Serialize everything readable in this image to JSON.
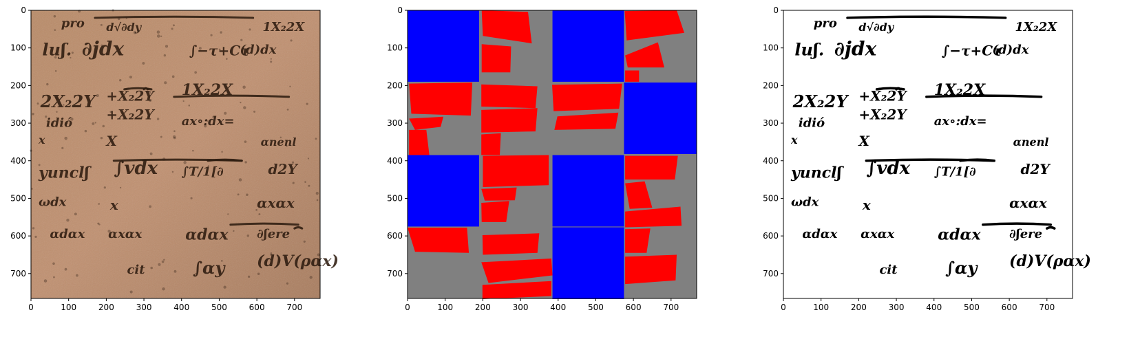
{
  "panels": [
    {
      "name": "manuscript-photo",
      "ticks": {
        "x": [
          "0",
          "100",
          "200",
          "300",
          "400",
          "500",
          "600",
          "700"
        ],
        "y": [
          "0",
          "100",
          "200",
          "300",
          "400",
          "500",
          "600",
          "700"
        ]
      },
      "background": "#b48867"
    },
    {
      "name": "segmentation-mask",
      "ticks": {
        "x": [
          "0",
          "100",
          "200",
          "300",
          "400",
          "500",
          "600",
          "700"
        ],
        "y": [
          "0",
          "100",
          "200",
          "300",
          "400",
          "500",
          "600",
          "700"
        ]
      },
      "colors": {
        "background": "#808080",
        "blue": "#0000ff",
        "red": "#ff0000"
      }
    },
    {
      "name": "binarized-text",
      "ticks": {
        "x": [
          "0",
          "100",
          "200",
          "300",
          "400",
          "500",
          "600",
          "700"
        ],
        "y": [
          "0",
          "100",
          "200",
          "300",
          "400",
          "500",
          "600",
          "700"
        ]
      },
      "background": "#ffffff"
    }
  ],
  "handwriting": {
    "words": [
      "pro",
      "d√∂dy",
      "1X₂2X",
      "luʃ.",
      "∂jdx",
      "∫−τ+Cτ",
      "(d)dx",
      "2X₂2Y",
      "+X₂2Y",
      "1X₂2X",
      "+X₂2Y",
      "idió",
      "ax∘:dx=",
      "X",
      "x",
      "αnenl",
      "yunclʃ",
      "∫vdx",
      "∫T/1[∂",
      "d2Y",
      "ωdx",
      "x",
      "αxαx",
      "αdαx",
      "αxαx",
      "∂ʃere",
      "αdαx",
      "cit",
      "∫αy",
      "(d)V(ραx)"
    ]
  }
}
